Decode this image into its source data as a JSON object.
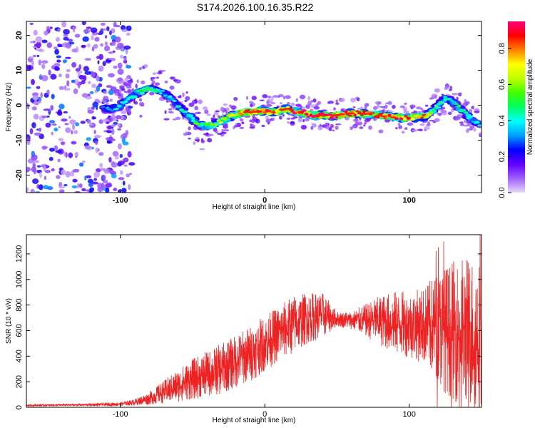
{
  "title": "S174.2026.100.16.35.R22",
  "chart_data": [
    {
      "type": "heatmap",
      "title": "S174.2026.100.16.35.R22",
      "xlabel": "Height of straight line (km)",
      "ylabel": "Frequency (Hz)",
      "xlim": [
        -165,
        150
      ],
      "ylim": [
        -25,
        24
      ],
      "xticks": [
        -100,
        0,
        100
      ],
      "xtick_labels": [
        "-100",
        "0",
        "100"
      ],
      "yticks": [
        20,
        10,
        0,
        -10,
        -20
      ],
      "ytick_labels": [
        "20",
        "10",
        "0",
        "-10",
        "-20"
      ],
      "colorbar": {
        "label": "Normalized spectral amplitude",
        "range": [
          0,
          0.95
        ],
        "ticks": [
          0.0,
          0.2,
          0.4,
          0.6,
          0.8
        ],
        "tick_labels": [
          "0.0",
          "0.2",
          "0.4",
          "0.6",
          "0.8"
        ],
        "colormap": [
          "#e8d8f8",
          "#a060ff",
          "#6000ff",
          "#0000ff",
          "#00a0ff",
          "#00ffff",
          "#00ff60",
          "#40ff00",
          "#c0ff00",
          "#ffff00",
          "#ff8000",
          "#ff0000",
          "#ff0080"
        ]
      },
      "ridge": {
        "x": [
          -110,
          -105,
          -100,
          -95,
          -90,
          -85,
          -80,
          -75,
          -70,
          -65,
          -60,
          -55,
          -50,
          -45,
          -40,
          -35,
          -30,
          -25,
          -20,
          -15,
          -10,
          -5,
          0,
          5,
          10,
          15,
          20,
          25,
          30,
          35,
          40,
          45,
          50,
          55,
          60,
          65,
          70,
          75,
          80,
          85,
          90,
          95,
          100,
          105,
          110,
          115,
          120,
          125,
          130,
          135,
          140,
          145,
          150
        ],
        "frequency": [
          -1,
          -1,
          0,
          1.5,
          3,
          4,
          5,
          4.5,
          3.5,
          2,
          0,
          -2,
          -4,
          -5.5,
          -6,
          -5.5,
          -4.5,
          -3.5,
          -2.5,
          -2,
          -2,
          -1.8,
          -1.5,
          -2,
          -1.5,
          -1,
          -1.5,
          -2,
          -2.5,
          -2.8,
          -3,
          -3,
          -2.8,
          -2.5,
          -2.3,
          -2.3,
          -2.5,
          -2.5,
          -3,
          -3.3,
          -3.5,
          -3.5,
          -3.5,
          -3.5,
          -3.2,
          -2,
          0,
          2,
          1,
          -1,
          -3,
          -5,
          -6
        ],
        "amplitude": [
          0.3,
          0.35,
          0.4,
          0.45,
          0.5,
          0.5,
          0.55,
          0.45,
          0.4,
          0.35,
          0.4,
          0.45,
          0.5,
          0.5,
          0.55,
          0.6,
          0.65,
          0.7,
          0.75,
          0.8,
          0.85,
          0.9,
          0.9,
          0.85,
          0.8,
          0.85,
          0.85,
          0.9,
          0.9,
          0.9,
          0.92,
          0.9,
          0.85,
          0.9,
          0.9,
          0.85,
          0.8,
          0.85,
          0.8,
          0.8,
          0.8,
          0.85,
          0.85,
          0.8,
          0.75,
          0.6,
          0.5,
          0.45,
          0.4,
          0.45,
          0.45,
          0.4,
          0.4
        ]
      },
      "noise_region": {
        "x_from": -165,
        "x_to": -100,
        "note": "scattered low-amplitude noise"
      }
    },
    {
      "type": "line",
      "xlabel": "Height of straight line (km)",
      "ylabel": "SNR (10 * v/v)",
      "xlim": [
        -165,
        150
      ],
      "ylim": [
        0,
        1350
      ],
      "xticks": [
        -100,
        0,
        100
      ],
      "xtick_labels": [
        "-100",
        "0",
        "100"
      ],
      "yticks": [
        0,
        200,
        400,
        600,
        800,
        1000,
        1200
      ],
      "ytick_labels": [
        "0",
        "200",
        "400",
        "600",
        "800",
        "1000",
        "1200"
      ],
      "color": "#ee2222",
      "envelope": {
        "x": [
          -165,
          -140,
          -120,
          -100,
          -90,
          -80,
          -70,
          -60,
          -50,
          -40,
          -30,
          -20,
          -10,
          0,
          10,
          20,
          30,
          40,
          50,
          60,
          70,
          80,
          90,
          100,
          110,
          120,
          130,
          140,
          150
        ],
        "mean": [
          15,
          18,
          20,
          25,
          40,
          70,
          120,
          170,
          220,
          260,
          300,
          360,
          420,
          500,
          580,
          650,
          700,
          720,
          690,
          680,
          680,
          680,
          660,
          650,
          640,
          620,
          600,
          600,
          580
        ],
        "spread": [
          8,
          10,
          10,
          15,
          25,
          50,
          90,
          130,
          160,
          180,
          200,
          210,
          220,
          220,
          220,
          230,
          200,
          180,
          60,
          70,
          130,
          200,
          250,
          260,
          300,
          450,
          550,
          600,
          600
        ]
      }
    }
  ]
}
